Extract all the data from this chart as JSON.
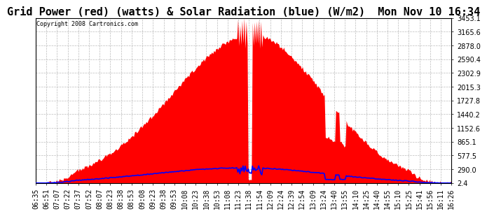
{
  "title": "Grid Power (red) (watts) & Solar Radiation (blue) (W/m2)  Mon Nov 10 16:34",
  "copyright": "Copyright 2008 Cartronics.com",
  "yticks": [
    2.4,
    290.0,
    577.5,
    865.1,
    1152.6,
    1440.2,
    1727.8,
    2015.3,
    2302.9,
    2590.4,
    2878.0,
    3165.6,
    3453.1
  ],
  "ymax": 3453.1,
  "ymin": 0,
  "xtick_labels": [
    "06:35",
    "06:51",
    "07:07",
    "07:22",
    "07:37",
    "07:52",
    "08:07",
    "08:23",
    "08:38",
    "08:53",
    "09:08",
    "09:23",
    "09:38",
    "09:53",
    "10:08",
    "10:23",
    "10:38",
    "10:53",
    "11:08",
    "11:23",
    "11:38",
    "11:54",
    "12:09",
    "12:24",
    "12:39",
    "12:54",
    "13:09",
    "13:24",
    "13:40",
    "13:55",
    "14:10",
    "14:25",
    "14:40",
    "14:55",
    "15:10",
    "15:25",
    "15:41",
    "15:56",
    "16:11",
    "16:26"
  ],
  "bg_color": "#ffffff",
  "plot_bg_color": "#ffffff",
  "grid_color": "#aaaaaa",
  "fill_color": "red",
  "line_color": "blue",
  "title_fontsize": 11,
  "tick_fontsize": 7
}
